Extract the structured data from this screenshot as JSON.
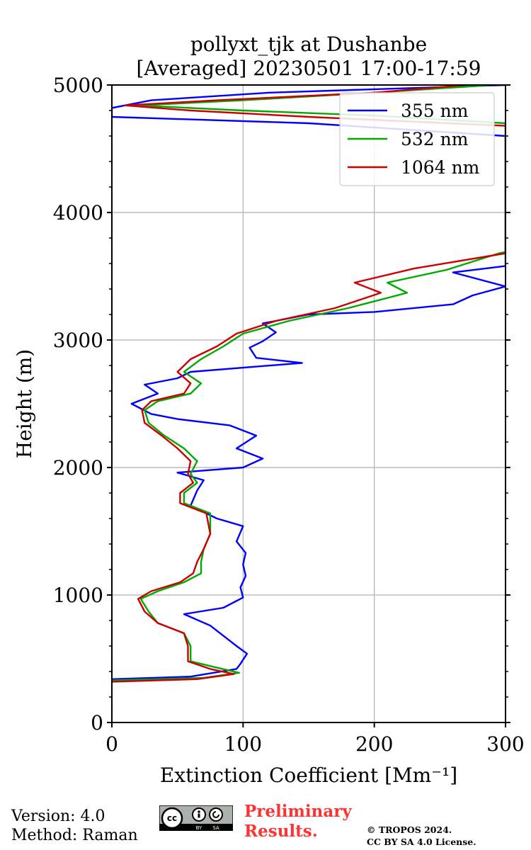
{
  "chart_data": {
    "type": "line",
    "title": "pollyxt_tjk at Dushanbe",
    "subtitle": "[Averaged] 20230501 17:00-17:59",
    "xlabel": "Extinction Coefficient [Mm⁻¹]",
    "ylabel": "Height (m)",
    "xlim": [
      0,
      300
    ],
    "ylim": [
      0,
      5000
    ],
    "xticks": [
      0,
      100,
      200,
      300
    ],
    "yticks": [
      0,
      1000,
      2000,
      3000,
      4000,
      5000
    ],
    "grid": true,
    "legend_position": "top-right",
    "series": [
      {
        "name": "355 nm",
        "color": "#0000ff",
        "points": [
          [
            0,
            340
          ],
          [
            60,
            360
          ],
          [
            95,
            420
          ],
          [
            98,
            460
          ],
          [
            103,
            540
          ],
          [
            95,
            600
          ],
          [
            85,
            680
          ],
          [
            75,
            760
          ],
          [
            55,
            850
          ],
          [
            85,
            900
          ],
          [
            100,
            980
          ],
          [
            98,
            1060
          ],
          [
            102,
            1150
          ],
          [
            100,
            1240
          ],
          [
            102,
            1330
          ],
          [
            95,
            1420
          ],
          [
            100,
            1540
          ],
          [
            80,
            1600
          ],
          [
            60,
            1700
          ],
          [
            65,
            1820
          ],
          [
            70,
            1900
          ],
          [
            50,
            1960
          ],
          [
            100,
            2000
          ],
          [
            115,
            2070
          ],
          [
            95,
            2150
          ],
          [
            110,
            2250
          ],
          [
            90,
            2330
          ],
          [
            50,
            2380
          ],
          [
            30,
            2420
          ],
          [
            15,
            2500
          ],
          [
            35,
            2580
          ],
          [
            25,
            2650
          ],
          [
            50,
            2700
          ],
          [
            60,
            2750
          ],
          [
            145,
            2820
          ],
          [
            110,
            2860
          ],
          [
            105,
            2940
          ],
          [
            115,
            2990
          ],
          [
            125,
            3060
          ],
          [
            115,
            3130
          ],
          [
            150,
            3200
          ],
          [
            200,
            3220
          ],
          [
            260,
            3280
          ],
          [
            275,
            3350
          ],
          [
            300,
            3420
          ],
          [
            260,
            3530
          ],
          [
            300,
            3580
          ],
          [
            300,
            4600
          ],
          [
            150,
            4700
          ],
          [
            0,
            4750
          ],
          [
            0,
            4820
          ],
          [
            30,
            4880
          ],
          [
            120,
            4940
          ],
          [
            300,
            5000
          ]
        ]
      },
      {
        "name": "532 nm",
        "color": "#00aa00",
        "points": [
          [
            0,
            330
          ],
          [
            70,
            350
          ],
          [
            97,
            390
          ],
          [
            80,
            430
          ],
          [
            60,
            480
          ],
          [
            60,
            600
          ],
          [
            55,
            700
          ],
          [
            35,
            780
          ],
          [
            28,
            870
          ],
          [
            22,
            970
          ],
          [
            35,
            1030
          ],
          [
            55,
            1100
          ],
          [
            68,
            1170
          ],
          [
            68,
            1260
          ],
          [
            70,
            1360
          ],
          [
            75,
            1480
          ],
          [
            75,
            1640
          ],
          [
            55,
            1720
          ],
          [
            55,
            1800
          ],
          [
            65,
            1880
          ],
          [
            60,
            1950
          ],
          [
            65,
            2050
          ],
          [
            55,
            2150
          ],
          [
            40,
            2250
          ],
          [
            28,
            2350
          ],
          [
            25,
            2450
          ],
          [
            35,
            2520
          ],
          [
            60,
            2580
          ],
          [
            68,
            2660
          ],
          [
            55,
            2750
          ],
          [
            68,
            2850
          ],
          [
            85,
            2950
          ],
          [
            100,
            3050
          ],
          [
            135,
            3150
          ],
          [
            180,
            3250
          ],
          [
            225,
            3370
          ],
          [
            210,
            3450
          ],
          [
            255,
            3550
          ],
          [
            295,
            3680
          ],
          [
            300,
            3690
          ],
          [
            300,
            4700
          ],
          [
            200,
            4760
          ],
          [
            100,
            4800
          ],
          [
            20,
            4840
          ],
          [
            100,
            4880
          ],
          [
            200,
            4940
          ],
          [
            290,
            5000
          ]
        ]
      },
      {
        "name": "1064 nm",
        "color": "#cc0000",
        "points": [
          [
            0,
            320
          ],
          [
            65,
            340
          ],
          [
            93,
            380
          ],
          [
            75,
            420
          ],
          [
            58,
            480
          ],
          [
            58,
            600
          ],
          [
            55,
            700
          ],
          [
            35,
            780
          ],
          [
            25,
            870
          ],
          [
            20,
            970
          ],
          [
            30,
            1030
          ],
          [
            52,
            1100
          ],
          [
            62,
            1170
          ],
          [
            65,
            1260
          ],
          [
            70,
            1360
          ],
          [
            75,
            1480
          ],
          [
            72,
            1640
          ],
          [
            52,
            1720
          ],
          [
            52,
            1800
          ],
          [
            62,
            1880
          ],
          [
            58,
            1950
          ],
          [
            60,
            2050
          ],
          [
            50,
            2150
          ],
          [
            38,
            2250
          ],
          [
            25,
            2350
          ],
          [
            23,
            2450
          ],
          [
            30,
            2520
          ],
          [
            55,
            2580
          ],
          [
            60,
            2660
          ],
          [
            50,
            2750
          ],
          [
            60,
            2850
          ],
          [
            80,
            2950
          ],
          [
            95,
            3050
          ],
          [
            125,
            3150
          ],
          [
            170,
            3250
          ],
          [
            205,
            3370
          ],
          [
            185,
            3450
          ],
          [
            230,
            3560
          ],
          [
            300,
            3680
          ],
          [
            300,
            4680
          ],
          [
            150,
            4750
          ],
          [
            60,
            4800
          ],
          [
            10,
            4840
          ],
          [
            80,
            4880
          ],
          [
            200,
            4940
          ],
          [
            270,
            5000
          ]
        ]
      }
    ]
  },
  "footer": {
    "version": "Version: 4.0",
    "method": "Method: Raman",
    "preliminary_line1": "Preliminary",
    "preliminary_line2": "Results.",
    "copyright_line1": "© TROPOS 2024.",
    "copyright_line2": "CC BY SA 4.0 License.",
    "license_badge": "cc-by-sa-icon"
  }
}
